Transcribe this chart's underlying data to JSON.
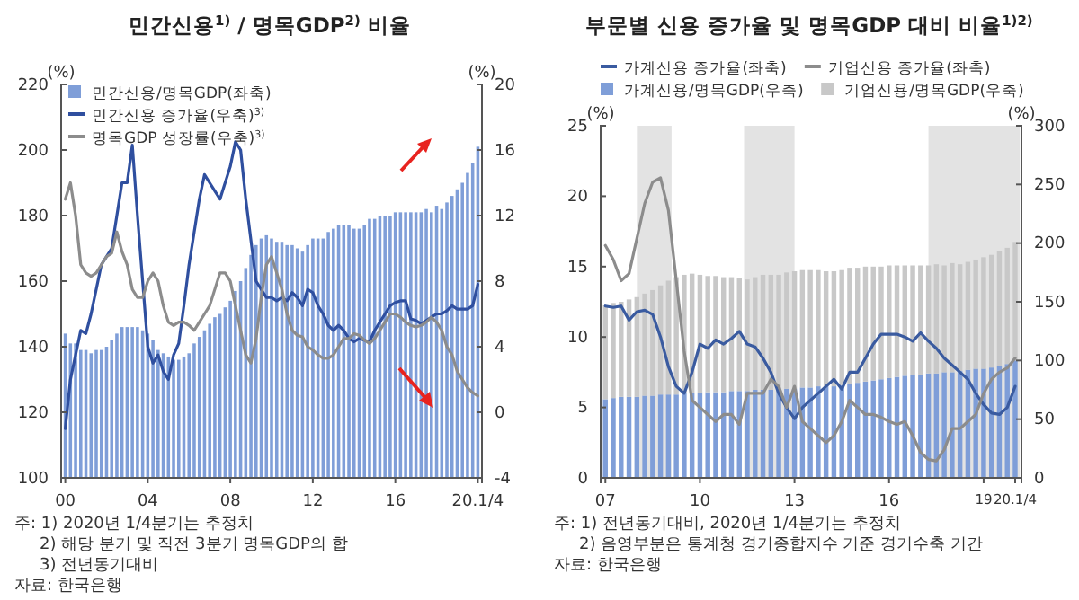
{
  "chart_data": [
    {
      "type": "bar",
      "title": "민간신용$^{1)}$ / 명목GDP$^{2)}$  비율",
      "ylabel": "(%)",
      "y2label": "(%)",
      "x": [
        2000,
        2000.25,
        2000.5,
        2000.75,
        2001,
        2001.25,
        2001.5,
        2001.75,
        2002,
        2002.25,
        2002.5,
        2002.75,
        2003,
        2003.25,
        2003.5,
        2003.75,
        2004,
        2004.25,
        2004.5,
        2004.75,
        2005,
        2005.25,
        2005.5,
        2005.75,
        2006,
        2006.25,
        2006.5,
        2006.75,
        2007,
        2007.25,
        2007.5,
        2007.75,
        2008,
        2008.25,
        2008.5,
        2008.75,
        2009,
        2009.25,
        2009.5,
        2009.75,
        2010,
        2010.25,
        2010.5,
        2010.75,
        2011,
        2011.25,
        2011.5,
        2011.75,
        2012,
        2012.25,
        2012.5,
        2012.75,
        2013,
        2013.25,
        2013.5,
        2013.75,
        2014,
        2014.25,
        2014.5,
        2014.75,
        2015,
        2015.25,
        2015.5,
        2015.75,
        2016,
        2016.25,
        2016.5,
        2016.75,
        2017,
        2017.25,
        2017.5,
        2017.75,
        2018,
        2018.25,
        2018.5,
        2018.75,
        2019,
        2019.25,
        2019.5,
        2019.75,
        2020
      ],
      "xlim": [
        1999.8,
        2020.2
      ],
      "xticks": [
        {
          "value": 2000,
          "label": "00"
        },
        {
          "value": 2004,
          "label": "04"
        },
        {
          "value": 2008,
          "label": "08"
        },
        {
          "value": 2012,
          "label": "12"
        },
        {
          "value": 2016,
          "label": "16"
        },
        {
          "value": 2020,
          "label": "20.1/4"
        }
      ],
      "ylim": [
        100,
        220
      ],
      "yticks": [
        100,
        120,
        140,
        160,
        180,
        200,
        220
      ],
      "y2lim": [
        -4,
        20
      ],
      "y2ticks": [
        -4,
        0,
        4,
        8,
        12,
        16,
        20
      ],
      "legend": "top left",
      "grid": false,
      "series": [
        {
          "name": "민간신용/명목GDP(좌축)",
          "type": "bar",
          "color": "#7f9ed8",
          "values": [
            144,
            141,
            141,
            139,
            139,
            138,
            139,
            139,
            140,
            142,
            144,
            146,
            146,
            146,
            146,
            145,
            144,
            142,
            139,
            138,
            137,
            136,
            136,
            137,
            138,
            141,
            143,
            145,
            147,
            149,
            150,
            152,
            154,
            157,
            160,
            164,
            168,
            171,
            173,
            174,
            173,
            172,
            172,
            171,
            171,
            170,
            169,
            171,
            173,
            173,
            173,
            175,
            176,
            177,
            177,
            177,
            176,
            176,
            177,
            179,
            179,
            180,
            180,
            180,
            181,
            181,
            181,
            181,
            181,
            181,
            182,
            181,
            183,
            182,
            184,
            186,
            188,
            190,
            193,
            196,
            201
          ]
        },
        {
          "name": "민간신용 증가율(우축)$^{3)}$",
          "type": "line",
          "axis": "y2",
          "color": "#2f4f9f",
          "values": [
            -1,
            2,
            3.5,
            5,
            4.8,
            6,
            7.5,
            9,
            9.5,
            10,
            12,
            14,
            14,
            16.3,
            12,
            8,
            4,
            3,
            3.5,
            2.5,
            2,
            3.5,
            4.2,
            6.5,
            9,
            11,
            13,
            14.5,
            14,
            13.5,
            13,
            14,
            15,
            16.5,
            16,
            13,
            10.5,
            8,
            7.5,
            7,
            7,
            6.8,
            7,
            6.8,
            7.3,
            7,
            6.5,
            7.5,
            7.3,
            6.5,
            6,
            5.3,
            5,
            5.3,
            5,
            4.5,
            4.3,
            4.5,
            4.4,
            4.3,
            5,
            5.5,
            6,
            6.5,
            6.7,
            6.8,
            6.8,
            5.7,
            5.6,
            5.4,
            5.6,
            5.8,
            6,
            6,
            6.2,
            6.5,
            6.3,
            6.3,
            6.3,
            6.5,
            7.8
          ]
        },
        {
          "name": "명목GDP 성장률(우축)$^{3)}$",
          "type": "line",
          "axis": "y2",
          "color": "#8c8c8c",
          "values": [
            13,
            14,
            12,
            9,
            8.5,
            8.3,
            8.5,
            9,
            9.5,
            9.7,
            11,
            9.8,
            9,
            7.5,
            7,
            7,
            8,
            8.5,
            8,
            6.5,
            5.5,
            5.3,
            5.5,
            5.5,
            5.3,
            5,
            5.5,
            6,
            6.5,
            7.5,
            8.5,
            8.5,
            8,
            6.5,
            5,
            3.5,
            3,
            4.5,
            7,
            9,
            9.5,
            8.5,
            7.5,
            6,
            5,
            4.7,
            4.6,
            4,
            3.8,
            3.5,
            3.3,
            3.3,
            3.5,
            4,
            4.5,
            4.5,
            4.8,
            4.7,
            4.4,
            4.2,
            4.5,
            5,
            5.5,
            6,
            6,
            5.8,
            5.5,
            5.3,
            5.2,
            5.3,
            5.5,
            5.8,
            5.5,
            5,
            4,
            3.5,
            2.5,
            2,
            1.5,
            1.2,
            1
          ]
        }
      ],
      "annotations": [
        "주: 1) 2020년 1/4분기는 추정치",
        "2) 해당 분기 및 직전 3분기 명목GDP의 합",
        "3) 전년동기대비",
        "자료: 한국은행"
      ]
    },
    {
      "type": "bar",
      "title": "부문별 신용 증가율 및 명목GDP 대비 비율$^{1)2)}$",
      "ylabel": "(%)",
      "y2label": "(%)",
      "x": [
        2007,
        2007.25,
        2007.5,
        2007.75,
        2008,
        2008.25,
        2008.5,
        2008.75,
        2009,
        2009.25,
        2009.5,
        2009.75,
        2010,
        2010.25,
        2010.5,
        2010.75,
        2011,
        2011.25,
        2011.5,
        2011.75,
        2012,
        2012.25,
        2012.5,
        2012.75,
        2013,
        2013.25,
        2013.5,
        2013.75,
        2014,
        2014.25,
        2014.5,
        2014.75,
        2015,
        2015.25,
        2015.5,
        2015.75,
        2016,
        2016.25,
        2016.5,
        2016.75,
        2017,
        2017.25,
        2017.5,
        2017.75,
        2018,
        2018.25,
        2018.5,
        2018.75,
        2019,
        2019.25,
        2019.5,
        2019.75,
        2020
      ],
      "xlim": [
        2006.85,
        2020.2
      ],
      "xticks": [
        {
          "value": 2007,
          "label": "07"
        },
        {
          "value": 2010,
          "label": "10"
        },
        {
          "value": 2013,
          "label": "13"
        },
        {
          "value": 2016,
          "label": "16"
        },
        {
          "value": 2019,
          "label": "19"
        },
        {
          "value": 2020,
          "label": "20.1/4"
        }
      ],
      "ylim": [
        0,
        25
      ],
      "yticks": [
        0,
        5,
        10,
        15,
        20,
        25
      ],
      "y2lim": [
        0,
        300
      ],
      "y2ticks": [
        0,
        50,
        100,
        150,
        200,
        250,
        300
      ],
      "legend": "top",
      "grid": false,
      "stacked": true,
      "bands": [
        {
          "axis": "x",
          "from": 2008,
          "to": 2009.1,
          "color": "#e3e3e3"
        },
        {
          "axis": "x",
          "from": 2011.4,
          "to": 2013,
          "color": "#e3e3e3"
        },
        {
          "axis": "x",
          "from": 2017.25,
          "to": 2020.15,
          "color": "#e3e3e3"
        }
      ],
      "series": [
        {
          "name": "가계신용 증가율(좌축)",
          "type": "line",
          "color": "#3a5ba0",
          "values": [
            12.2,
            12.1,
            12.2,
            11.2,
            11.8,
            11.9,
            11.6,
            10,
            7.9,
            6.5,
            6,
            7.5,
            9.5,
            9.2,
            9.8,
            9.5,
            9.9,
            10.4,
            9.5,
            9.3,
            8.5,
            7.5,
            6,
            5,
            4.2,
            5,
            5.5,
            6,
            6.5,
            7,
            6.3,
            7.5,
            7.5,
            8.5,
            9.5,
            10.2,
            10.2,
            10.2,
            10,
            9.7,
            10.3,
            9.7,
            9.2,
            8.5,
            8,
            7.5,
            7,
            6,
            5.2,
            4.6,
            4.5,
            5,
            6.5
          ]
        },
        {
          "name": "기업신용 증가율(좌축)",
          "type": "line",
          "color": "#8c8c8c",
          "values": [
            16.5,
            15.5,
            14,
            14.5,
            17,
            19.5,
            21,
            21.3,
            19,
            14,
            9,
            5.5,
            5,
            4.5,
            4,
            4.5,
            4.5,
            3.8,
            6,
            6,
            6,
            7,
            6.5,
            5,
            6.5,
            4,
            3.5,
            3,
            2.5,
            3,
            4,
            5.5,
            5,
            4.5,
            4.5,
            4.3,
            4,
            3.8,
            4,
            3,
            1.8,
            1.3,
            1.2,
            2,
            3.5,
            3.5,
            4,
            4.5,
            6,
            7,
            7.5,
            7.8,
            8.5
          ]
        },
        {
          "name": "가계신용/명목GDP(우축)",
          "type": "bar",
          "axis": "y2",
          "color": "#7f9ed8",
          "values": [
            67,
            68,
            69,
            69,
            69,
            70,
            70,
            71,
            71,
            71,
            72,
            72,
            72,
            73,
            73,
            73,
            74,
            74,
            74,
            75,
            75,
            75,
            76,
            76,
            76,
            77,
            77,
            78,
            78,
            78,
            79,
            80,
            81,
            82,
            83,
            84,
            85,
            86,
            87,
            88,
            88,
            89,
            89,
            90,
            90,
            91,
            92,
            93,
            93,
            94,
            95,
            97,
            100
          ]
        },
        {
          "name": "기업신용/명목GDP(우축)",
          "type": "bar",
          "axis": "y2",
          "color": "#c8c8c8",
          "values": [
            80,
            81,
            81,
            83,
            85,
            87,
            90,
            93,
            97,
            100,
            101,
            102,
            101,
            99,
            99,
            98,
            97,
            96,
            95,
            96,
            98,
            98,
            97,
            99,
            100,
            100,
            100,
            99,
            98,
            98,
            98,
            99,
            98,
            98,
            97,
            96,
            96,
            95,
            94,
            93,
            93,
            92,
            93,
            91,
            93,
            91,
            92,
            93,
            95,
            96,
            98,
            99,
            101
          ]
        }
      ],
      "annotations": [
        "주: 1) 전년동기대비, 2020년 1/4분기는 추정치",
        "2) 음영부분은 통계청 경기종합지수 기준 경기수축 기간",
        "자료: 한국은행"
      ]
    }
  ]
}
